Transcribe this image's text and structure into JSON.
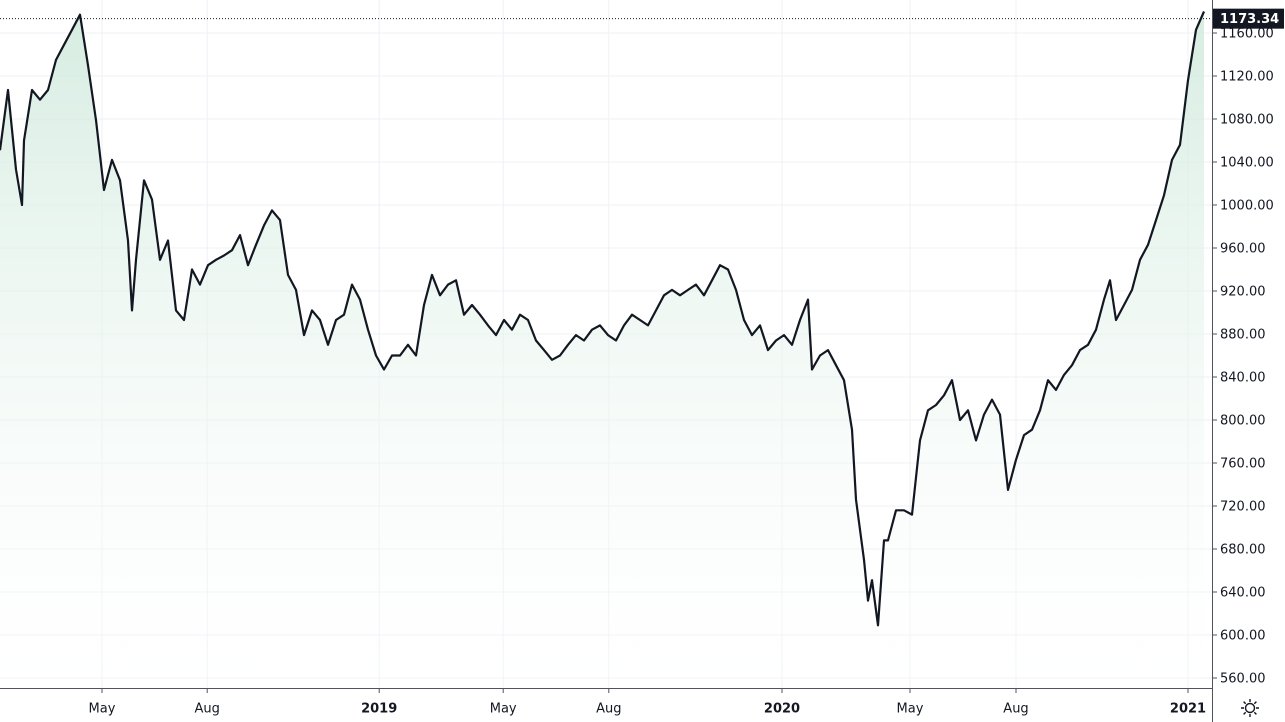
{
  "chart_data": {
    "type": "area",
    "line_color": "#131722",
    "fill_color": "#cfe9dc",
    "grid": true,
    "x": [
      0,
      1,
      2,
      2.75,
      3,
      4,
      5,
      6,
      7,
      8,
      9,
      10,
      11,
      12,
      13,
      14,
      15,
      16,
      16.5,
      17,
      18,
      19,
      20,
      21,
      22,
      23,
      24,
      25,
      26,
      27,
      28,
      29,
      30,
      31,
      32,
      33,
      34,
      35,
      36,
      37,
      38,
      39,
      40,
      41,
      42,
      43,
      44,
      45,
      46,
      47,
      48,
      49,
      50,
      51,
      52,
      53,
      54,
      55,
      56,
      57,
      58,
      59,
      60,
      61,
      62,
      63,
      64,
      65,
      66,
      67,
      68,
      69,
      70,
      71,
      72,
      73,
      74,
      75,
      76,
      77,
      78,
      79,
      80,
      81,
      82,
      83,
      84,
      85,
      86,
      87,
      88,
      89,
      90,
      91,
      92,
      93,
      94,
      95,
      96,
      97,
      98,
      99,
      100,
      101,
      101.5,
      102.5,
      103.5,
      104.5,
      105.5,
      106.5,
      107,
      108,
      108.5,
      109,
      109.75,
      110.5,
      111,
      112,
      113,
      114,
      115,
      116,
      117,
      118,
      119,
      120,
      121,
      122,
      123,
      124,
      125,
      126,
      127,
      128,
      129,
      130,
      131,
      132,
      133,
      134,
      135,
      136,
      137,
      138,
      138.75,
      139.5,
      140.5,
      141.5,
      142.5,
      143.5,
      144.5,
      145.5,
      146.5,
      147.5,
      148.5,
      149.5,
      150.5
    ],
    "values": [
      1051,
      1107,
      1033,
      1000,
      1060,
      1107,
      1098,
      1107,
      1135,
      1149,
      1163,
      1177,
      1130,
      1079,
      1014,
      1042,
      1023,
      967,
      902,
      949,
      1023,
      1005,
      949,
      967,
      902,
      893,
      940,
      926,
      944,
      949,
      953,
      958,
      972,
      944,
      963,
      981,
      995,
      986,
      935,
      921,
      879,
      902,
      893,
      870,
      893,
      898,
      926,
      912,
      884,
      860,
      847,
      860,
      860,
      870,
      860,
      907,
      935,
      916,
      926,
      930,
      898,
      907,
      898,
      888,
      879,
      893,
      884,
      898,
      893,
      874,
      865,
      856,
      860,
      870,
      879,
      874,
      884,
      888,
      879,
      874,
      888,
      898,
      893,
      888,
      902,
      916,
      921,
      916,
      921,
      926,
      916,
      930,
      944,
      940,
      921,
      893,
      879,
      888,
      865,
      874,
      879,
      870,
      893,
      912,
      847,
      860,
      865,
      851,
      837,
      791,
      726,
      670,
      632,
      651,
      609,
      688,
      688,
      716,
      716,
      712,
      781,
      809,
      814,
      823,
      837,
      800,
      809,
      781,
      805,
      819,
      805,
      735,
      763,
      786,
      791,
      809,
      837,
      828,
      842,
      851,
      865,
      870,
      884,
      912,
      930,
      893,
      907,
      921,
      949,
      963,
      986,
      1009,
      1042,
      1056,
      1116,
      1163,
      1180
    ],
    "last_value": 1173.34,
    "xlim": [
      0,
      151.5
    ],
    "xticks": [
      {
        "value": 12.75,
        "label": "May"
      },
      {
        "value": 25.9,
        "label": "Aug"
      },
      {
        "value": 47.4,
        "label": "2019"
      },
      {
        "value": 62.9,
        "label": "May"
      },
      {
        "value": 76.1,
        "label": "Aug"
      },
      {
        "value": 97.75,
        "label": "2020"
      },
      {
        "value": 113.75,
        "label": "May"
      },
      {
        "value": 127,
        "label": "Aug"
      },
      {
        "value": 148.5,
        "label": "2021"
      }
    ],
    "ylim": [
      550.7,
      1190.7
    ],
    "yticks": [
      {
        "value": 560,
        "label": "560.00"
      },
      {
        "value": 600,
        "label": "600.00"
      },
      {
        "value": 640,
        "label": "640.00"
      },
      {
        "value": 680,
        "label": "680.00"
      },
      {
        "value": 720,
        "label": "720.00"
      },
      {
        "value": 760,
        "label": "760.00"
      },
      {
        "value": 800,
        "label": "800.00"
      },
      {
        "value": 840,
        "label": "840.00"
      },
      {
        "value": 880,
        "label": "880.00"
      },
      {
        "value": 920,
        "label": "920.00"
      },
      {
        "value": 960,
        "label": "960.00"
      },
      {
        "value": 1000,
        "label": "1000.00"
      },
      {
        "value": 1040,
        "label": "1040.00"
      },
      {
        "value": 1080,
        "label": "1080.00"
      },
      {
        "value": 1120,
        "label": "1120.00"
      },
      {
        "value": 1160,
        "label": "1160.00"
      }
    ]
  }
}
